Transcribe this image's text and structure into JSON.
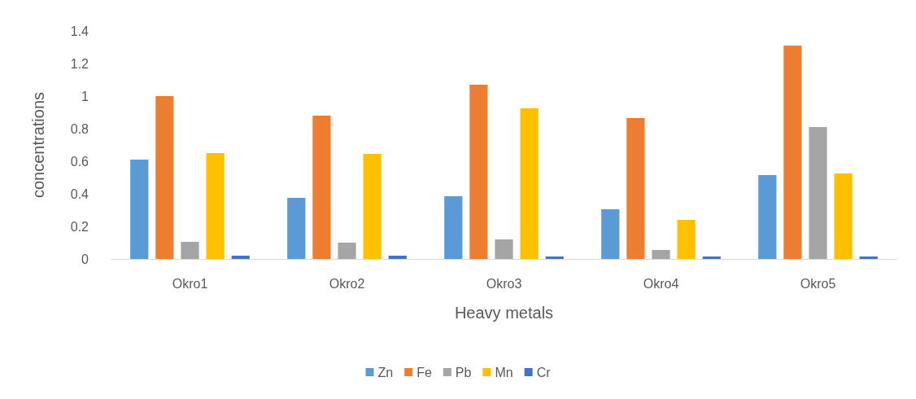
{
  "chart_data": {
    "type": "bar",
    "xlabel": "Heavy metals",
    "ylabel": "concentrations",
    "categories": [
      "Okro1",
      "Okro2",
      "Okro3",
      "Okro4",
      "Okro5"
    ],
    "series": [
      {
        "name": "Zn",
        "color": "#5b9bd5",
        "values": [
          0.61,
          0.375,
          0.385,
          0.305,
          0.515
        ]
      },
      {
        "name": "Fe",
        "color": "#ed7d31",
        "values": [
          1.0,
          0.88,
          1.07,
          0.865,
          1.31
        ]
      },
      {
        "name": "Pb",
        "color": "#a5a5a5",
        "values": [
          0.105,
          0.1,
          0.12,
          0.055,
          0.81
        ]
      },
      {
        "name": "Mn",
        "color": "#ffc000",
        "values": [
          0.65,
          0.645,
          0.925,
          0.24,
          0.525
        ]
      },
      {
        "name": "Cr",
        "color": "#4472c4",
        "values": [
          0.02,
          0.02,
          0.015,
          0.015,
          0.015
        ]
      }
    ],
    "ylim": [
      0,
      1.4
    ],
    "yticks": [
      0,
      0.2,
      0.4,
      0.6,
      0.8,
      1,
      1.2,
      1.4
    ],
    "grid": false,
    "legend": "bottom"
  }
}
